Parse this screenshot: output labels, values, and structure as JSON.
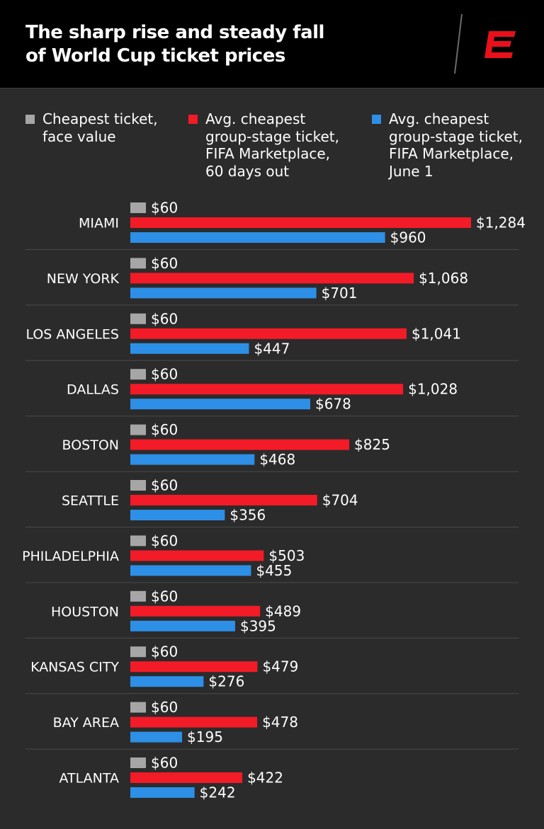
{
  "header": {
    "title_line1": "The sharp rise and steady fall",
    "title_line2": "of World Cup ticket prices",
    "logo_icon": "espn-e-logo"
  },
  "colors": {
    "background": "#2b2b2b",
    "header": "#000000",
    "gray": "#a6a6a6",
    "red": "#f21b27",
    "blue": "#2d8fe6",
    "divider": "#4a4a4a"
  },
  "legend": [
    {
      "label": "Cheapest ticket,\nface value",
      "color": "#a6a6a6"
    },
    {
      "label": "Avg. cheapest\ngroup-stage ticket,\nFIFA Marketplace,\n60 days out",
      "color": "#f21b27"
    },
    {
      "label": "Avg. cheapest\ngroup-stage ticket,\nFIFA Marketplace,\nJune 1",
      "color": "#2d8fe6"
    }
  ],
  "chart_data": {
    "type": "bar",
    "orientation": "horizontal",
    "categories": [
      "MIAMI",
      "NEW YORK",
      "LOS ANGELES",
      "DALLAS",
      "BOSTON",
      "SEATTLE",
      "PHILADELPHIA",
      "HOUSTON",
      "KANSAS CITY",
      "BAY AREA",
      "ATLANTA"
    ],
    "series": [
      {
        "name": "Cheapest ticket, face value",
        "color": "#a6a6a6",
        "values": [
          60,
          60,
          60,
          60,
          60,
          60,
          60,
          60,
          60,
          60,
          60
        ],
        "labels": [
          "$60",
          "$60",
          "$60",
          "$60",
          "$60",
          "$60",
          "$60",
          "$60",
          "$60",
          "$60",
          "$60"
        ]
      },
      {
        "name": "Avg. cheapest group-stage ticket, FIFA Marketplace, 60 days out",
        "color": "#f21b27",
        "values": [
          1284,
          1068,
          1041,
          1028,
          825,
          704,
          503,
          489,
          479,
          478,
          422
        ],
        "labels": [
          "$1,284",
          "$1,068",
          "$1,041",
          "$1,028",
          "$825",
          "$704",
          "$503",
          "$489",
          "$479",
          "$478",
          "$422"
        ]
      },
      {
        "name": "Avg. cheapest group-stage ticket, FIFA Marketplace, June 1",
        "color": "#2d8fe6",
        "values": [
          960,
          701,
          447,
          678,
          468,
          356,
          455,
          395,
          276,
          195,
          242
        ],
        "labels": [
          "$960",
          "$701",
          "$447",
          "$678",
          "$468",
          "$356",
          "$455",
          "$395",
          "$276",
          "$195",
          "$242"
        ]
      }
    ],
    "xlim": [
      0,
      1284
    ],
    "grid": false,
    "legend_position": "top"
  }
}
